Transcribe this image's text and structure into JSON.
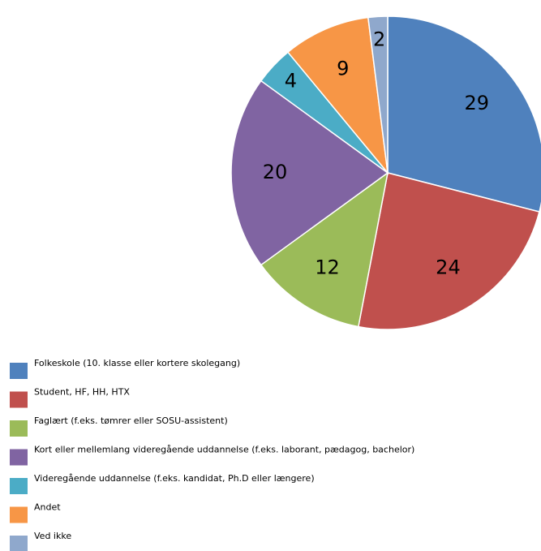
{
  "chart_data": {
    "type": "pie",
    "categories": [
      "Folkeskole (10. klasse eller kortere skolegang)",
      "Student, HF, HH, HTX",
      "Faglært (f.eks. tømrer eller SOSU-assistent)",
      "Kort eller mellemlang videregående uddannelse (f.eks. laborant, pædagog, bachelor)",
      "Videregående uddannelse (f.eks. kandidat, Ph.D eller længere)",
      "Andet",
      "Ved ikke"
    ],
    "values": [
      29,
      24,
      12,
      20,
      4,
      9,
      2
    ],
    "colors": [
      "#4f81bd",
      "#c0504d",
      "#9bbb59",
      "#8064a2",
      "#4bacc6",
      "#f79646",
      "#8fa8cc"
    ],
    "legend": "bottom-left"
  }
}
